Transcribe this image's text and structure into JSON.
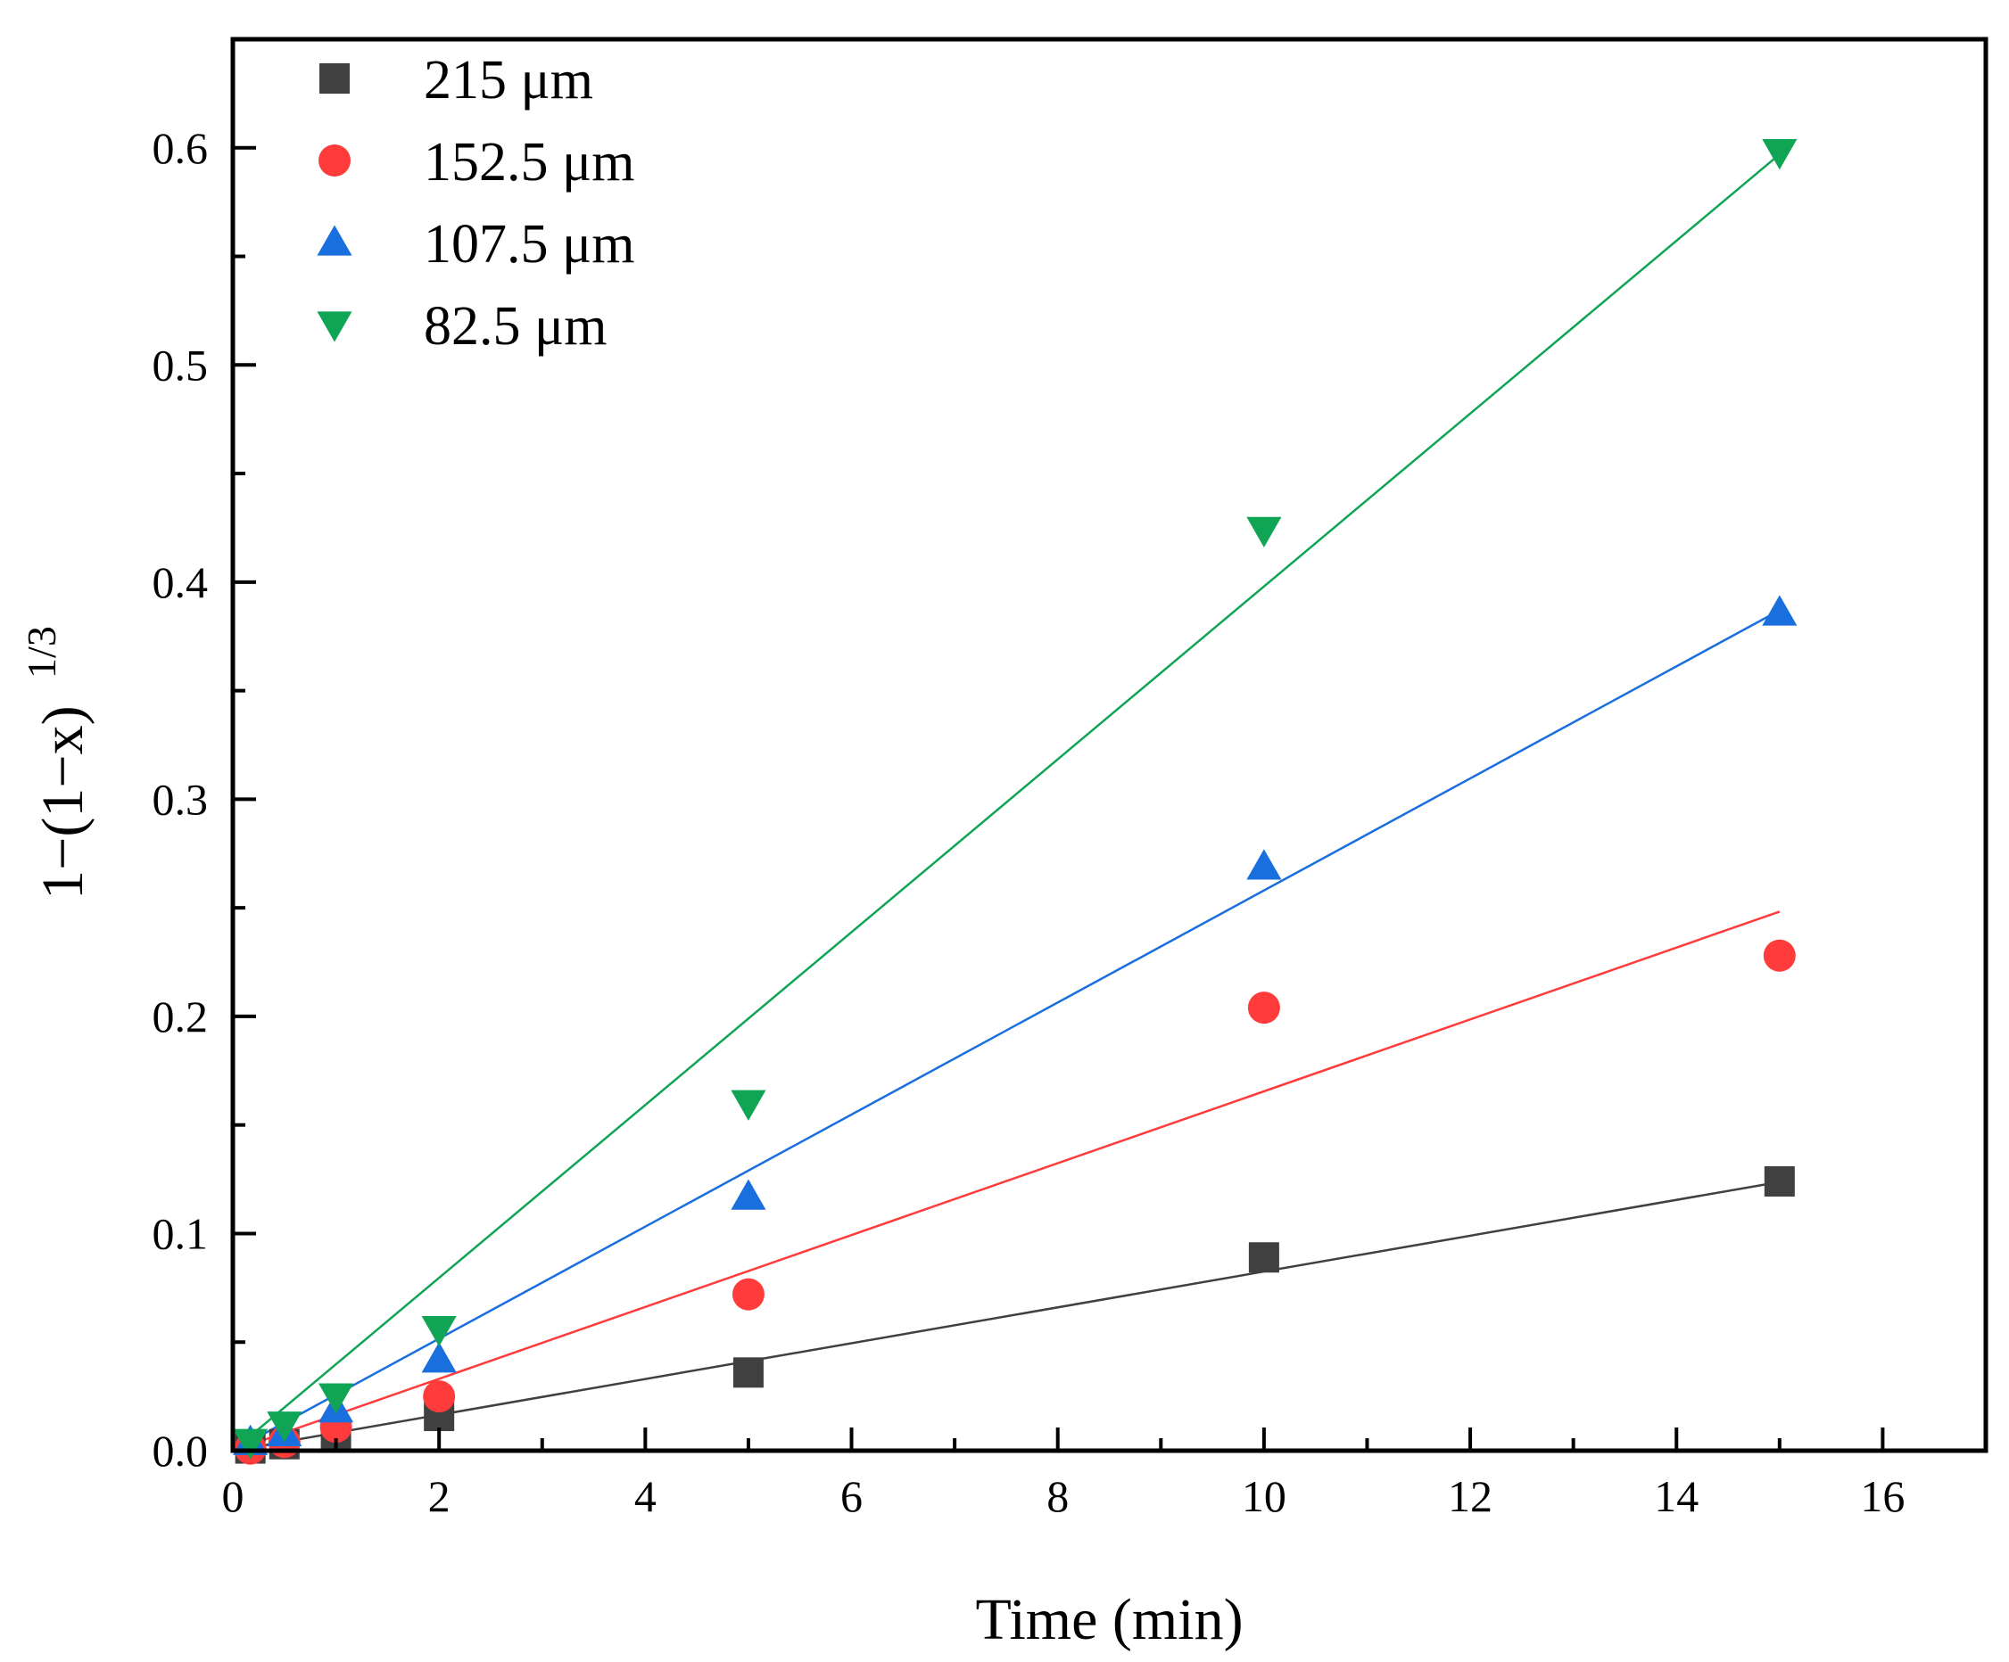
{
  "chart_data": {
    "type": "scatter",
    "xlabel": "Time (min)",
    "ylabel": {
      "base": "1−(1−x)",
      "superscript": "1/3"
    },
    "xlim": [
      0,
      17
    ],
    "ylim": [
      0,
      0.65
    ],
    "x_ticks": [
      0,
      2,
      4,
      6,
      8,
      10,
      12,
      14,
      16
    ],
    "x_tick_labels": [
      "0",
      "2",
      "4",
      "6",
      "8",
      "10",
      "12",
      "14",
      "16"
    ],
    "x_minor_ticks": [
      1,
      3,
      5,
      7,
      9,
      11,
      13,
      15
    ],
    "y_ticks": [
      0,
      0.1,
      0.2,
      0.3,
      0.4,
      0.5,
      0.6
    ],
    "y_tick_labels": [
      "0.0",
      "0.1",
      "0.2",
      "0.3",
      "0.4",
      "0.5",
      "0.6"
    ],
    "y_minor_ticks": [
      0.05,
      0.15,
      0.25,
      0.35,
      0.45,
      0.55
    ],
    "grid": false,
    "legend_position": "top-left",
    "x": [
      0.17,
      0.5,
      1,
      2,
      5,
      10,
      15
    ],
    "series": [
      {
        "name": "215 μm",
        "marker": "square",
        "color": "#404040",
        "values": [
          0.001,
          0.003,
          0.008,
          0.016,
          0.036,
          0.089,
          0.124
        ],
        "fit_slope": 0.00825
      },
      {
        "name": "152.5 μm",
        "marker": "circle",
        "color": "#ff3b3b",
        "values": [
          0.001,
          0.004,
          0.011,
          0.025,
          0.072,
          0.204,
          0.228
        ],
        "fit_slope": 0.01655
      },
      {
        "name": "107.5 μm",
        "marker": "triangle-up",
        "color": "#1a6fde",
        "values": [
          0.004,
          0.008,
          0.019,
          0.042,
          0.117,
          0.269,
          0.386
        ],
        "fit_slope": 0.0258
      },
      {
        "name": "82.5 μm",
        "marker": "triangle-down",
        "color": "#0fa554",
        "values": [
          0.004,
          0.012,
          0.025,
          0.056,
          0.16,
          0.424,
          0.598
        ],
        "fit_slope": 0.0398
      }
    ]
  }
}
